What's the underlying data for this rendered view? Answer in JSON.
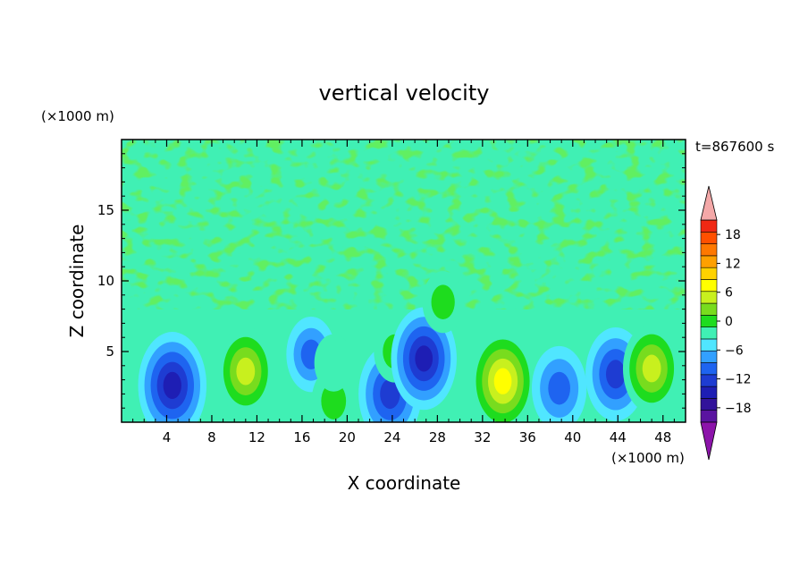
{
  "chart_data": {
    "type": "heatmap",
    "title": "vertical velocity",
    "xlabel": "X coordinate",
    "ylabel": "Z coordinate",
    "x_units": "(×1000 m)",
    "y_units": "(×1000 m)",
    "time_label": "t=867600 s",
    "xlim": [
      0,
      50
    ],
    "ylim": [
      0,
      20
    ],
    "x_ticks": [
      4,
      8,
      12,
      16,
      20,
      24,
      28,
      32,
      36,
      40,
      44,
      48
    ],
    "x_tick_labels": [
      "4",
      "8",
      "12",
      "16",
      "20",
      "24",
      "28",
      "32",
      "36",
      "40",
      "44",
      "48"
    ],
    "y_ticks": [
      5,
      10,
      15
    ],
    "y_tick_labels": [
      "5",
      "10",
      "15"
    ],
    "colorbar": {
      "min": -21,
      "max": 21,
      "step": 3,
      "tick_values": [
        18,
        12,
        6,
        0,
        -6,
        -12,
        -18
      ],
      "tick_labels": [
        "18",
        "12",
        "6",
        "0",
        "−6",
        "−12",
        "−18"
      ],
      "colors": [
        "#5A14A0",
        "#32139A",
        "#1E1EB4",
        "#1E3CD2",
        "#1E64F0",
        "#32A0FF",
        "#50E6FF",
        "#40F0B4",
        "#1EDC1E",
        "#78DC1E",
        "#C8F01E",
        "#FFFF00",
        "#FFD200",
        "#FFA000",
        "#FF7800",
        "#FF5000",
        "#F02814"
      ],
      "over_color": "#F4A8A8",
      "under_color": "#8C14AA"
    },
    "features": [
      {
        "kind": "downdraft",
        "x": 4.5,
        "z": 2.6,
        "w": -14
      },
      {
        "kind": "updraft",
        "x": 11,
        "z": 3.6,
        "w": 10
      },
      {
        "kind": "downdraft",
        "x": 16.8,
        "z": 4.8,
        "w": -7
      },
      {
        "kind": "updraft",
        "x": 18.8,
        "z": 1.5,
        "w": 5
      },
      {
        "kind": "updraft",
        "x": 18.8,
        "z": 4.2,
        "w": 3
      },
      {
        "kind": "downdraft",
        "x": 23.8,
        "z": 2.0,
        "w": -12
      },
      {
        "kind": "updraft",
        "x": 24.2,
        "z": 5.0,
        "w": 4
      },
      {
        "kind": "downdraft",
        "x": 26.8,
        "z": 4.5,
        "w": -13
      },
      {
        "kind": "updraft",
        "x": 28.5,
        "z": 8.5,
        "w": 4
      },
      {
        "kind": "updraft",
        "x": 33.8,
        "z": 2.9,
        "w": 13
      },
      {
        "kind": "downdraft",
        "x": 38.8,
        "z": 2.4,
        "w": -9
      },
      {
        "kind": "downdraft",
        "x": 43.8,
        "z": 3.4,
        "w": -11
      },
      {
        "kind": "updraft",
        "x": 47,
        "z": 3.8,
        "w": 10
      }
    ]
  }
}
